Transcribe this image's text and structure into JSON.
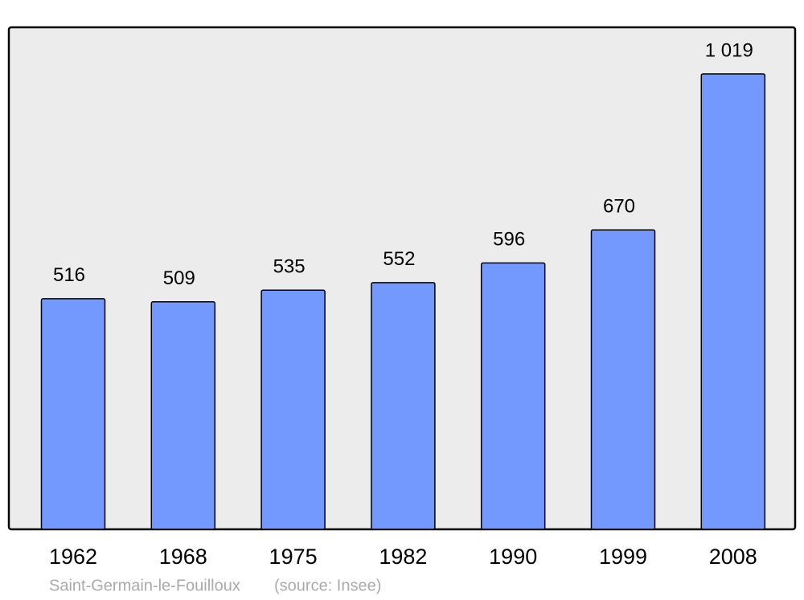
{
  "chart_data": {
    "type": "bar",
    "categories": [
      "1962",
      "1968",
      "1975",
      "1982",
      "1990",
      "1999",
      "2008"
    ],
    "values": [
      516,
      509,
      535,
      552,
      596,
      670,
      1019
    ],
    "value_labels": [
      "516",
      "509",
      "535",
      "552",
      "596",
      "670",
      "1 019"
    ],
    "color": "#7399ff",
    "title": "Saint-Germain-le-Fouilloux",
    "source": "(source: Insee)"
  }
}
